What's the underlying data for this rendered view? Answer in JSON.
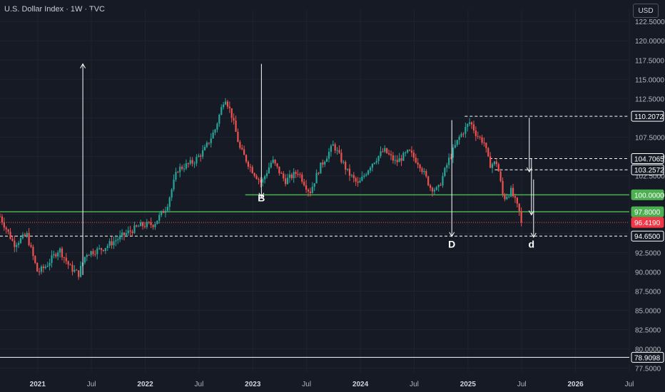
{
  "header": {
    "title": "U.S. Dollar Index · 1W · TVC",
    "currency_label": "USD"
  },
  "colors": {
    "background": "#161a25",
    "up": "#26a69a",
    "down": "#ef5350",
    "text": "#b2b5be",
    "grid": "#1f2330",
    "green_line": "#4caf50",
    "white": "#ffffff",
    "price_tag": "#f23645"
  },
  "chart_data": {
    "type": "candlestick",
    "instrument": "U.S. Dollar Index",
    "timeframe": "1W",
    "source": "TVC",
    "y_axis": {
      "range": [
        77.0,
        124.0
      ],
      "ticks": [
        "122.5000",
        "120.0000",
        "117.5000",
        "115.0000",
        "112.5000",
        "110.0000",
        "107.5000",
        "105.0000",
        "102.5000",
        "100.0000",
        "97.5000",
        "95.0000",
        "92.5000",
        "90.0000",
        "87.5000",
        "85.0000",
        "82.5000",
        "80.0000",
        "77.5000"
      ],
      "tick_values": [
        122.5,
        120,
        117.5,
        115,
        112.5,
        110,
        107.5,
        105,
        102.5,
        100,
        97.5,
        95,
        92.5,
        90,
        87.5,
        85,
        82.5,
        80,
        77.5
      ]
    },
    "x_axis": {
      "range": [
        2020.65,
        2026.5
      ],
      "labels": [
        {
          "text": "2021",
          "t": 2021.0,
          "bold": true
        },
        {
          "text": "Jul",
          "t": 2021.5,
          "bold": false
        },
        {
          "text": "2022",
          "t": 2022.0,
          "bold": true
        },
        {
          "text": "Jul",
          "t": 2022.5,
          "bold": false
        },
        {
          "text": "2023",
          "t": 2023.0,
          "bold": true
        },
        {
          "text": "Jul",
          "t": 2023.5,
          "bold": false
        },
        {
          "text": "2024",
          "t": 2024.0,
          "bold": true
        },
        {
          "text": "Jul",
          "t": 2024.5,
          "bold": false
        },
        {
          "text": "2025",
          "t": 2025.0,
          "bold": true
        },
        {
          "text": "Jul",
          "t": 2025.5,
          "bold": false
        },
        {
          "text": "2026",
          "t": 2026.0,
          "bold": true
        },
        {
          "text": "Jul",
          "t": 2026.5,
          "bold": false
        }
      ]
    },
    "price_path": [
      [
        2020.65,
        97.2
      ],
      [
        2020.78,
        93.6
      ],
      [
        2020.9,
        94.8
      ],
      [
        2021.0,
        89.9
      ],
      [
        2021.08,
        90.8
      ],
      [
        2021.2,
        93.0
      ],
      [
        2021.3,
        90.6
      ],
      [
        2021.38,
        89.7
      ],
      [
        2021.45,
        92.4
      ],
      [
        2021.6,
        93.0
      ],
      [
        2021.8,
        94.8
      ],
      [
        2021.95,
        96.0
      ],
      [
        2022.08,
        96.2
      ],
      [
        2022.2,
        98.5
      ],
      [
        2022.3,
        103.3
      ],
      [
        2022.45,
        104.3
      ],
      [
        2022.55,
        105.8
      ],
      [
        2022.65,
        108.5
      ],
      [
        2022.74,
        112.8
      ],
      [
        2022.8,
        110.5
      ],
      [
        2022.88,
        106.0
      ],
      [
        2022.98,
        103.5
      ],
      [
        2023.08,
        101.5
      ],
      [
        2023.18,
        104.5
      ],
      [
        2023.3,
        101.8
      ],
      [
        2023.42,
        103.0
      ],
      [
        2023.53,
        100.3
      ],
      [
        2023.62,
        103.5
      ],
      [
        2023.75,
        106.5
      ],
      [
        2023.88,
        103.0
      ],
      [
        2023.98,
        101.3
      ],
      [
        2024.1,
        104.0
      ],
      [
        2024.22,
        105.8
      ],
      [
        2024.33,
        104.2
      ],
      [
        2024.45,
        105.6
      ],
      [
        2024.55,
        104.0
      ],
      [
        2024.65,
        101.0
      ],
      [
        2024.72,
        100.6
      ],
      [
        2024.82,
        104.5
      ],
      [
        2024.92,
        107.5
      ],
      [
        2025.02,
        109.5
      ],
      [
        2025.08,
        107.8
      ],
      [
        2025.15,
        106.8
      ],
      [
        2025.2,
        103.9
      ],
      [
        2025.27,
        104.2
      ],
      [
        2025.33,
        99.5
      ],
      [
        2025.4,
        100.5
      ],
      [
        2025.45,
        98.8
      ],
      [
        2025.51,
        96.42
      ]
    ],
    "horizontal_levels": [
      {
        "value": 110.2072,
        "label": "110.2072",
        "style": "dashed",
        "color": "white"
      },
      {
        "value": 104.7065,
        "label": "104.7065",
        "style": "dashed",
        "color": "white"
      },
      {
        "value": 103.2572,
        "label": "103.2572",
        "style": "dashed",
        "color": "white"
      },
      {
        "value": 100.0,
        "label": "100.0000",
        "style": "solid",
        "color": "green"
      },
      {
        "value": 97.8,
        "label": "97.8000",
        "style": "solid",
        "color": "green"
      },
      {
        "value": 96.419,
        "label": "96.4190",
        "style": "dotted",
        "color": "red",
        "note": "last price"
      },
      {
        "value": 94.65,
        "label": "94.6500",
        "style": "dashed",
        "color": "white"
      },
      {
        "value": 78.9098,
        "label": "78.9098",
        "style": "solid",
        "color": "white"
      }
    ],
    "annotations": [
      {
        "text": "B",
        "x": 2023.08,
        "y": 99.7
      },
      {
        "text": "D",
        "x": 2024.85,
        "y": 93.7
      },
      {
        "text": "d",
        "x": 2025.59,
        "y": 93.7
      }
    ],
    "arrows": [
      {
        "from": [
          2021.42,
          89.6
        ],
        "to": [
          2021.42,
          117.0
        ]
      },
      {
        "from": [
          2023.08,
          117.0
        ],
        "to": [
          2023.08,
          99.7
        ]
      },
      {
        "from": [
          2024.85,
          109.7
        ],
        "to": [
          2024.85,
          94.6
        ]
      },
      {
        "from": [
          2025.57,
          110.0
        ],
        "to": [
          2025.57,
          103.0
        ]
      },
      {
        "from": [
          2025.59,
          104.7
        ],
        "to": [
          2025.59,
          97.4
        ]
      },
      {
        "from": [
          2025.61,
          102.0
        ],
        "to": [
          2025.61,
          94.5
        ]
      }
    ],
    "level_segments": [
      {
        "value": 110.2072,
        "from": 2024.97
      },
      {
        "value": 104.7065,
        "from": 2025.2
      },
      {
        "value": 103.2572,
        "from": 2025.25
      },
      {
        "value": 100.0,
        "from": 2022.93
      }
    ]
  }
}
